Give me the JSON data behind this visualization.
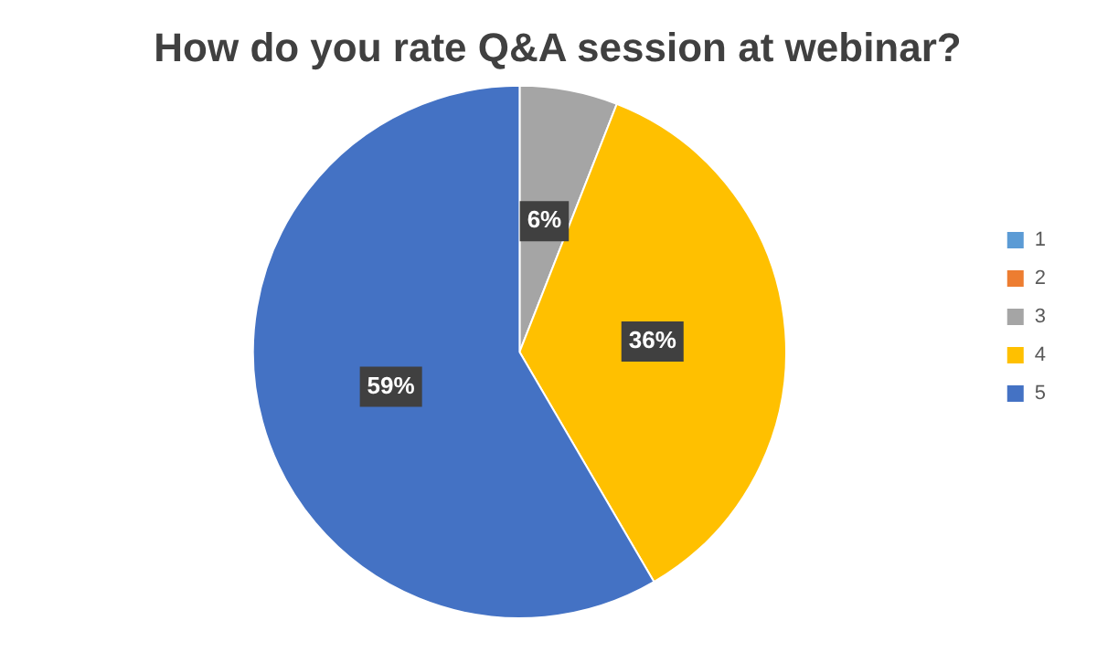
{
  "chart_data": {
    "type": "pie",
    "title": "How do you rate Q&A session at webinar?",
    "categories": [
      "1",
      "2",
      "3",
      "4",
      "5"
    ],
    "values": [
      0,
      0,
      6,
      36,
      59
    ],
    "colors": [
      "#5b9bd5",
      "#ed7d31",
      "#a5a5a5",
      "#ffc000",
      "#4472c4"
    ],
    "value_labels": [
      null,
      null,
      "6%",
      "36%",
      "59%"
    ],
    "legend": "right"
  }
}
